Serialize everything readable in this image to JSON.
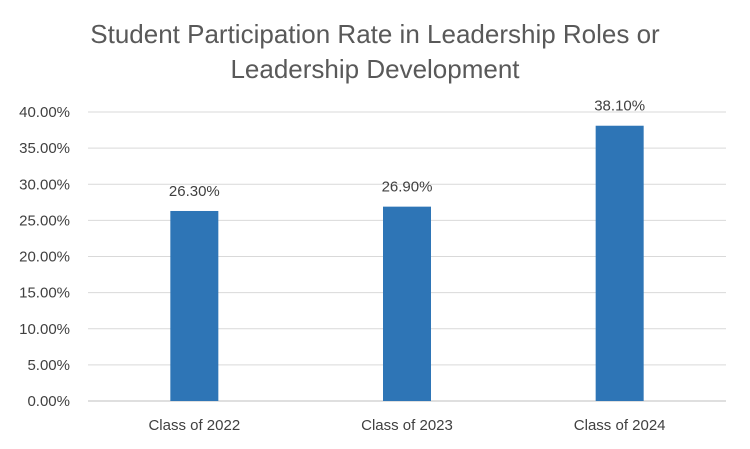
{
  "chart_data": {
    "type": "bar",
    "title_lines": [
      "Student Participation Rate in Leadership Roles or",
      "Leadership Development"
    ],
    "categories": [
      "Class of 2022",
      "Class of 2023",
      "Class of 2024"
    ],
    "values": [
      26.3,
      26.9,
      38.1
    ],
    "data_labels": [
      "26.30%",
      "26.90%",
      "38.10%"
    ],
    "y_ticks": [
      0,
      5,
      10,
      15,
      20,
      25,
      30,
      35,
      40
    ],
    "y_tick_labels": [
      "0.00%",
      "5.00%",
      "10.00%",
      "15.00%",
      "20.00%",
      "25.00%",
      "30.00%",
      "35.00%",
      "40.00%"
    ],
    "ylim": [
      0,
      40
    ],
    "grid": true,
    "legend": "none",
    "bar_color": "#2e75b6"
  }
}
